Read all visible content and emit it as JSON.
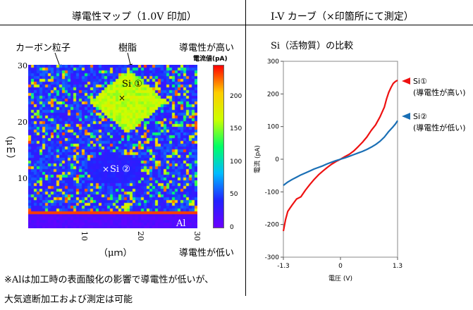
{
  "left_panel": {
    "title": "導電性マップ（1.0V 印加）",
    "label_carbon": "カーボン粒子",
    "label_resin": "樹脂",
    "label_high": "導電性が高い",
    "label_low": "導電性が低い",
    "colorbar_title": "電流値(pA)",
    "colorbar_ticks": [
      "0",
      "50",
      "100",
      "150",
      "200"
    ],
    "map_label_si1": "Si ①",
    "map_label_si2": "Si ②",
    "map_label_al": "Al",
    "x_ticks": [
      "10",
      "20",
      "30"
    ],
    "y_ticks": [
      "10",
      "20",
      "30"
    ],
    "x_unit": "（μｍ）",
    "y_unit": "（μｍ）",
    "note_line1": "※Alは加工時の表面酸化の影響で導電性が低いが、",
    "note_line2": "大気遮断加工および測定は可能"
  },
  "right_panel": {
    "title": "I-V カーブ（×印箇所にて測定）",
    "subtitle": "Si（活物質）の比較"
  },
  "chart_data": {
    "type": "line",
    "xlabel": "電圧 (V)",
    "ylabel": "電流 (pA)",
    "xlim": [
      -1.3,
      1.3
    ],
    "ylim": [
      -300,
      300
    ],
    "x_ticks": [
      -1.3,
      0,
      1.3
    ],
    "x_tick_labels": [
      "-1.3",
      "0",
      "1.3"
    ],
    "y_ticks": [
      -300,
      -200,
      -100,
      0,
      100,
      200,
      300
    ],
    "series": [
      {
        "name": "Si①",
        "legend_line1": "Si①",
        "legend_line2": "(導電性が高い)",
        "color": "#ee1111",
        "x": [
          -1.3,
          -1.25,
          -1.2,
          -1.15,
          -1.1,
          -1.0,
          -0.9,
          -0.8,
          -0.7,
          -0.6,
          -0.5,
          -0.4,
          -0.3,
          -0.2,
          -0.1,
          0,
          0.1,
          0.2,
          0.3,
          0.4,
          0.5,
          0.6,
          0.7,
          0.8,
          0.9,
          1.0,
          1.05,
          1.1,
          1.15,
          1.2,
          1.25,
          1.3
        ],
        "y": [
          -220,
          -185,
          -160,
          -150,
          -140,
          -122,
          -115,
          -95,
          -78,
          -62,
          -48,
          -36,
          -25,
          -15,
          -7,
          0,
          8,
          15,
          25,
          38,
          52,
          68,
          88,
          105,
          130,
          160,
          185,
          205,
          220,
          232,
          238,
          242
        ]
      },
      {
        "name": "Si②",
        "legend_line1": "Si②",
        "legend_line2": "(導電性が低い)",
        "color": "#1a6fb5",
        "x": [
          -1.3,
          -1.2,
          -1.1,
          -1.0,
          -0.9,
          -0.8,
          -0.7,
          -0.6,
          -0.5,
          -0.4,
          -0.3,
          -0.2,
          -0.1,
          0,
          0.1,
          0.2,
          0.3,
          0.4,
          0.5,
          0.6,
          0.7,
          0.8,
          0.9,
          1.0,
          1.1,
          1.2,
          1.25,
          1.3
        ],
        "y": [
          -80,
          -70,
          -62,
          -55,
          -48,
          -42,
          -36,
          -30,
          -25,
          -20,
          -14,
          -9,
          -4,
          0,
          4,
          9,
          14,
          19,
          24,
          30,
          37,
          45,
          55,
          68,
          85,
          100,
          108,
          118
        ]
      }
    ]
  },
  "map_data": {
    "type": "heatmap",
    "xlim": [
      0,
      30
    ],
    "ylim": [
      0,
      30
    ],
    "color_scale": [
      "#6a00ff",
      "#2222ff",
      "#00bbff",
      "#00ff66",
      "#ccff00",
      "#ffcc00",
      "#ff0000"
    ],
    "value_range": [
      0,
      250
    ]
  }
}
